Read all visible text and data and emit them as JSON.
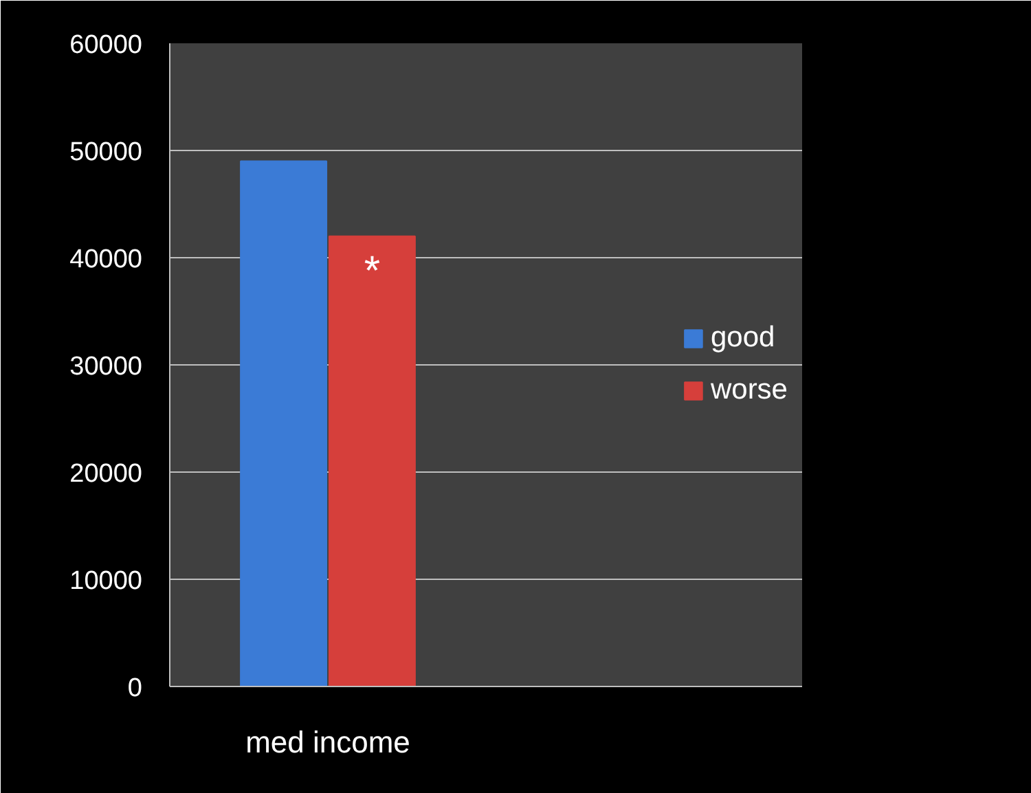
{
  "chart_data": {
    "type": "bar",
    "categories": [
      "med income"
    ],
    "series": [
      {
        "name": "good",
        "color": "#3b7bd6",
        "values": [
          49000
        ]
      },
      {
        "name": "worse",
        "color": "#d63f3b",
        "values": [
          42000
        ]
      }
    ],
    "ylim": [
      0,
      60000
    ],
    "yticks": [
      0,
      10000,
      20000,
      30000,
      40000,
      50000,
      60000
    ],
    "grid": "y",
    "legend": "right",
    "annotations": [
      "*"
    ]
  }
}
